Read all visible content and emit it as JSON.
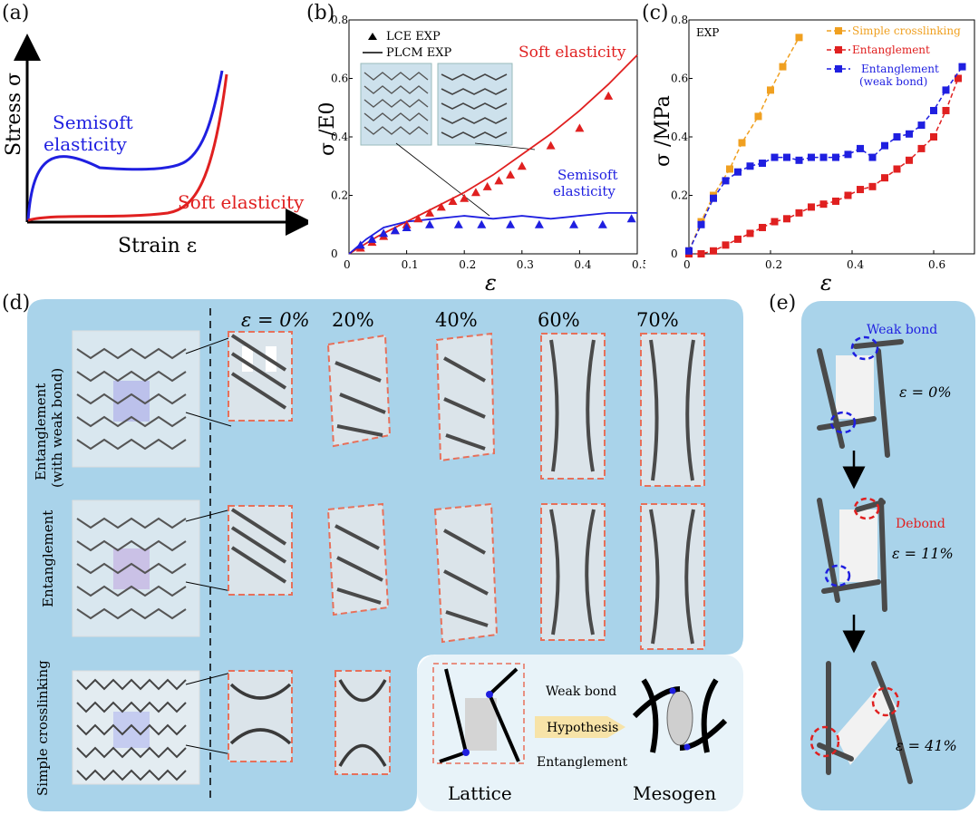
{
  "panels": {
    "a": "(a)",
    "b": "(b)",
    "c": "(c)",
    "d": "(d)",
    "e": "(e)"
  },
  "panel_a": {
    "y_label": "Stress σ",
    "x_label": "Strain ε",
    "curve_blue": "Semisoft elasticity",
    "curve_blue_l1": "Semisoft",
    "curve_blue_l2": "elasticity",
    "curve_red": "Soft elasticity",
    "colors": {
      "blue": "#1f1fe0",
      "red": "#e02020"
    }
  },
  "panel_b": {
    "legend": [
      "LCE EXP",
      "PLCM EXP"
    ],
    "annot_soft": "Soft elasticity",
    "annot_semi_l1": "Semisoft",
    "annot_semi_l2": "elasticity",
    "y_label": "σ /E0",
    "x_label": "ε"
  },
  "panel_c": {
    "tag": "EXP",
    "legend": [
      "Simple crosslinking",
      "Entanglement",
      "Entanglement",
      "(weak bond)"
    ],
    "y_label": "σ /MPa",
    "x_label": "ε"
  },
  "chart_data": [
    {
      "type": "line",
      "title": "",
      "xlabel": "ε",
      "ylabel": "σ /E0",
      "xlim": [
        0,
        0.5
      ],
      "ylim": [
        0,
        0.8
      ],
      "xticks": [
        "0",
        "0.1",
        "0.2",
        "0.3",
        "0.4",
        "0.5"
      ],
      "yticks": [
        "0",
        "0.2",
        "0.4",
        "0.6",
        "0.8"
      ],
      "series": [
        {
          "name": "Soft elasticity (PLCM EXP)",
          "style": "line",
          "color": "#e02020",
          "x": [
            0,
            0.05,
            0.1,
            0.15,
            0.2,
            0.25,
            0.3,
            0.35,
            0.4,
            0.45,
            0.5
          ],
          "y": [
            0,
            0.06,
            0.11,
            0.16,
            0.21,
            0.27,
            0.34,
            0.41,
            0.49,
            0.58,
            0.68
          ]
        },
        {
          "name": "Semisoft elasticity (PLCM EXP)",
          "style": "line",
          "color": "#1f1fe0",
          "x": [
            0,
            0.03,
            0.06,
            0.1,
            0.15,
            0.2,
            0.25,
            0.3,
            0.35,
            0.4,
            0.45,
            0.5
          ],
          "y": [
            0,
            0.05,
            0.09,
            0.11,
            0.12,
            0.13,
            0.12,
            0.13,
            0.12,
            0.13,
            0.14,
            0.14
          ]
        },
        {
          "name": "Soft elasticity (LCE EXP)",
          "style": "marker",
          "color": "#e02020",
          "x": [
            0.02,
            0.04,
            0.06,
            0.08,
            0.1,
            0.12,
            0.14,
            0.16,
            0.18,
            0.2,
            0.22,
            0.24,
            0.26,
            0.28,
            0.3,
            0.35,
            0.4,
            0.45
          ],
          "y": [
            0.02,
            0.04,
            0.06,
            0.08,
            0.1,
            0.12,
            0.14,
            0.16,
            0.18,
            0.19,
            0.21,
            0.23,
            0.25,
            0.27,
            0.3,
            0.37,
            0.43,
            0.54
          ]
        },
        {
          "name": "Semisoft elasticity (LCE EXP)",
          "style": "marker",
          "color": "#1f1fe0",
          "x": [
            0.02,
            0.04,
            0.06,
            0.08,
            0.1,
            0.14,
            0.19,
            0.23,
            0.28,
            0.33,
            0.39,
            0.44,
            0.49
          ],
          "y": [
            0.03,
            0.05,
            0.07,
            0.08,
            0.09,
            0.1,
            0.1,
            0.1,
            0.1,
            0.1,
            0.1,
            0.1,
            0.12
          ]
        }
      ]
    },
    {
      "type": "line",
      "title": "",
      "xlabel": "ε",
      "ylabel": "σ /MPa",
      "xlim": [
        0,
        0.7
      ],
      "ylim": [
        0,
        0.8
      ],
      "xticks": [
        "0",
        "0.2",
        "0.4",
        "0.6"
      ],
      "yticks": [
        "0",
        "0.2",
        "0.4",
        "0.6",
        "0.8"
      ],
      "series": [
        {
          "name": "Simple crosslinking",
          "color": "#f0a020",
          "x": [
            0,
            0.03,
            0.06,
            0.1,
            0.13,
            0.17,
            0.2,
            0.23,
            0.27
          ],
          "y": [
            0.01,
            0.11,
            0.2,
            0.29,
            0.38,
            0.47,
            0.56,
            0.64,
            0.74
          ]
        },
        {
          "name": "Entanglement",
          "color": "#e02020",
          "x": [
            0,
            0.03,
            0.06,
            0.09,
            0.12,
            0.15,
            0.18,
            0.21,
            0.24,
            0.27,
            0.3,
            0.33,
            0.36,
            0.39,
            0.42,
            0.45,
            0.48,
            0.51,
            0.54,
            0.57,
            0.6,
            0.63,
            0.66
          ],
          "y": [
            0,
            0,
            0.01,
            0.03,
            0.05,
            0.07,
            0.09,
            0.11,
            0.12,
            0.14,
            0.16,
            0.17,
            0.18,
            0.2,
            0.22,
            0.23,
            0.26,
            0.29,
            0.32,
            0.36,
            0.4,
            0.49,
            0.6
          ]
        },
        {
          "name": "Entanglement (weak bond)",
          "color": "#1f1fe0",
          "x": [
            0,
            0.03,
            0.06,
            0.09,
            0.12,
            0.15,
            0.18,
            0.21,
            0.24,
            0.27,
            0.3,
            0.33,
            0.36,
            0.39,
            0.42,
            0.45,
            0.48,
            0.51,
            0.54,
            0.57,
            0.6,
            0.63,
            0.67
          ],
          "y": [
            0.01,
            0.1,
            0.19,
            0.25,
            0.28,
            0.3,
            0.31,
            0.33,
            0.33,
            0.32,
            0.33,
            0.33,
            0.33,
            0.34,
            0.36,
            0.33,
            0.37,
            0.4,
            0.41,
            0.44,
            0.49,
            0.56,
            0.64
          ]
        }
      ]
    }
  ],
  "panel_d": {
    "strains": [
      "ε = 0%",
      "20%",
      "40%",
      "60%",
      "70%"
    ],
    "rows": [
      "Entanglement",
      "(with weak bond)",
      "Entanglement",
      "Simple crosslinking"
    ],
    "inset": {
      "weak_bond": "Weak bond",
      "hypothesis": "Hypothesis",
      "entanglement": "Entanglement",
      "lattice": "Lattice",
      "mesogen": "Mesogen"
    }
  },
  "panel_e": {
    "weak_bond": "Weak bond",
    "debond": "Debond",
    "strain_labels": [
      "ε = 0%",
      "ε = 11%",
      "ε = 41%"
    ]
  }
}
